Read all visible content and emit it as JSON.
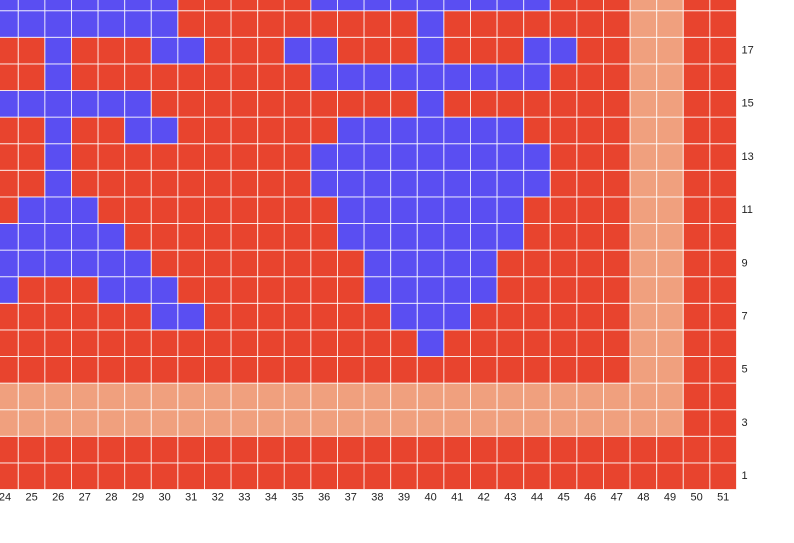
{
  "pattern": {
    "colors": {
      "R": "#e8442e",
      "B": "#5a4ef2",
      "P": "#f0a07e"
    },
    "columns": [
      24,
      25,
      26,
      27,
      28,
      29,
      30,
      31,
      32,
      33,
      34,
      35,
      36,
      37,
      38,
      39,
      40,
      41,
      42,
      43,
      44,
      45,
      46,
      47,
      48,
      49,
      50,
      51
    ],
    "row_labels": [
      1,
      3,
      5,
      7,
      9,
      11,
      13,
      15,
      17
    ],
    "rows_bottom_up": [
      "RRRRRRRRRRRRRRRRRRRRRRRRRRRR",
      "RRRRRRRRRRRRRRRRRRRRRRRRRRRR",
      "PPPPPPPPPPPPPPPPPPPPPPPPPPRR",
      "PPPPPPPPPPPPPPPPPPPPPPPPPPRR",
      "RRRRRRRRRRRRRRRRRRRRRRRRPPRR",
      "RRRRRRRRRRRRRRRRBRRRRRRRPPRR",
      "RRRRRRBBRRRRRRRBBBRRRRRRPPRR",
      "BRRRBBBRRRRRRRBBBBBRRRRRPPRR",
      "BBBBBBRRRRRRRRBBBBBRRRRRPPRR",
      "BBBBBRRRRRRRRBBBBBBBRRRRPPRR",
      "RBBBRRRRRRRRRBBBBBBBRRRRPPRR",
      "RRBRRRRRRRRRBBBBBBBBBRRRPPRR",
      "RRBRRRRRRRRRBBBBBBBBBRRRPPRR",
      "RRBRRBBRRRRRRBBBBBBBRRRRPPRR",
      "BBBBBBRRRRRRRRRRBRRRRRRRPPRR",
      "RRBRRRRRRRRRBBBBBBBBBRRRPPRR",
      "RRBRRRBBRRRBBRRRBRRRBBRRPPRR",
      "BBBBBBBRRRRRRRRRBRRRRRRRPPRR",
      "BBBBBBBRRRRRBBBBBBBBBRRRPPRR"
    ]
  }
}
